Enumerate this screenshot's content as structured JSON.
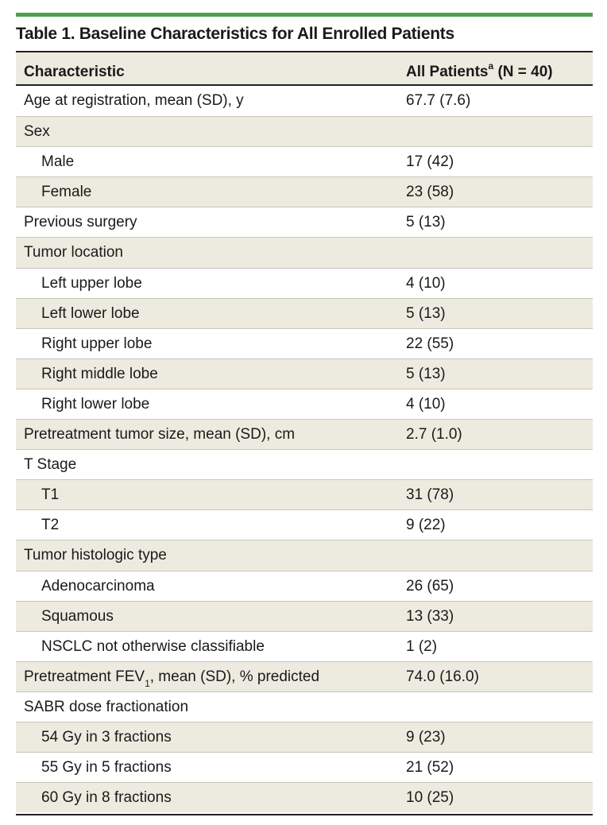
{
  "table": {
    "title": "Table 1. Baseline Characteristics for All Enrolled Patients",
    "header": {
      "characteristic": "Characteristic",
      "all_patients": "All Patients",
      "all_patients_sup": "a",
      "all_patients_n": " (N = 40)"
    },
    "rows": [
      {
        "label": "Age at registration, mean (SD), y",
        "value": "67.7 (7.6)",
        "level": 0
      },
      {
        "label": "Sex",
        "value": "",
        "level": 0
      },
      {
        "label": "Male",
        "value": "17 (42)",
        "level": 1
      },
      {
        "label": "Female",
        "value": "23 (58)",
        "level": 1
      },
      {
        "label": "Previous surgery",
        "value": "5 (13)",
        "level": 0
      },
      {
        "label": "Tumor location",
        "value": "",
        "level": 0
      },
      {
        "label": "Left upper lobe",
        "value": "4 (10)",
        "level": 1
      },
      {
        "label": "Left lower lobe",
        "value": "5 (13)",
        "level": 1
      },
      {
        "label": "Right upper lobe",
        "value": "22 (55)",
        "level": 1
      },
      {
        "label": "Right middle lobe",
        "value": "5 (13)",
        "level": 1
      },
      {
        "label": "Right lower lobe",
        "value": "4 (10)",
        "level": 1
      },
      {
        "label": "Pretreatment tumor size, mean (SD), cm",
        "value": "2.7 (1.0)",
        "level": 0
      },
      {
        "label": "T Stage",
        "value": "",
        "level": 0
      },
      {
        "label": "T1",
        "value": "31 (78)",
        "level": 1
      },
      {
        "label": "T2",
        "value": "9 (22)",
        "level": 1
      },
      {
        "label": "Tumor histologic type",
        "value": "",
        "level": 0
      },
      {
        "label": "Adenocarcinoma",
        "value": "26 (65)",
        "level": 1
      },
      {
        "label": "Squamous",
        "value": "13 (33)",
        "level": 1
      },
      {
        "label": "NSCLC not otherwise classifiable",
        "value": "1 (2)",
        "level": 1
      },
      {
        "label": "Pretreatment FEV",
        "label_sub": "1",
        "label_after": ", mean (SD), % predicted",
        "value": "74.0 (16.0)",
        "level": 0
      },
      {
        "label": "SABR dose fractionation",
        "value": "",
        "level": 0
      },
      {
        "label": "54 Gy in 3 fractions",
        "value": "9 (23)",
        "level": 1
      },
      {
        "label": "55 Gy in 5 fractions",
        "value": "21 (52)",
        "level": 1
      },
      {
        "label": "60 Gy in 8 fractions",
        "value": "10 (25)",
        "level": 1
      }
    ]
  },
  "colors": {
    "accent_rule": "#4f9f4f",
    "row_shade": "#edeadf"
  }
}
